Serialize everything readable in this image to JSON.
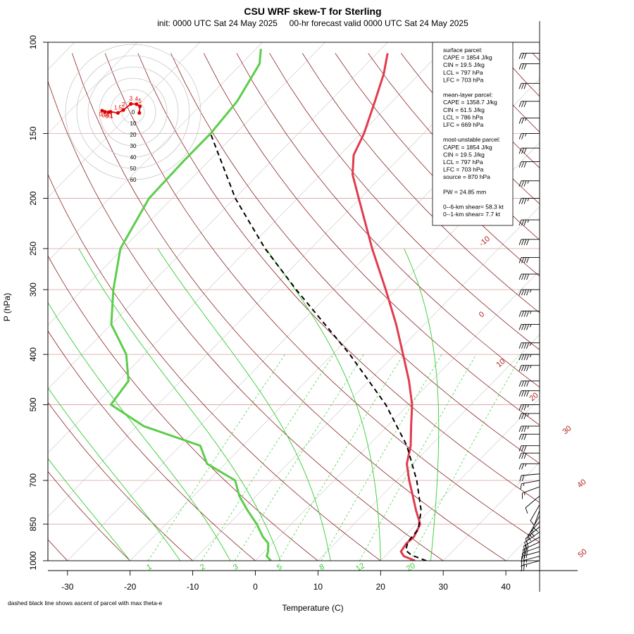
{
  "title": "CSU WRF skew-T for Sterling",
  "subtitle": "init: 0000 UTC Sat 24 May 2025     00-hr forecast valid 0000 UTC Sat 24 May 2025",
  "footnote": "dashed black line shows ascent of parcel with max theta-e",
  "colors": {
    "temperature": "#e03c4e",
    "dewpoint": "#5ccd4a",
    "parcel": "#000000",
    "isotherm": "#b22222",
    "dry_adiabat": "#8b2323",
    "moist_adiabat": "#32cd32",
    "mixing_ratio": "#32cd32",
    "isobar": "#d8a0a0",
    "hodograph": "#e00000",
    "grid_gray": "#c8c8c8"
  },
  "info_box": {
    "lines": [
      "surface parcel:",
      "CAPE = 1854 J/kg",
      "CIN = 19.5 J/kg",
      "LCL = 797 hPa",
      "LFC = 703 hPa",
      "",
      "mean-layer parcel:",
      "CAPE = 1358.7 J/kg",
      "CIN = 61.5 J/kg",
      "LCL = 786 hPa",
      "LFC = 669 hPa",
      "",
      "most-unstable parcel:",
      "CAPE = 1854 J/kg",
      "CIN = 19.5 J/kg",
      "LCL = 797 hPa",
      "LFC = 703 hPa",
      "source = 870 hPa",
      "",
      "PW =  24.85 mm",
      "",
      "0--6-km shear= 58.3 kt",
      "0--1-km shear= 7.7 kt"
    ]
  },
  "chart_data": {
    "type": "line",
    "subtype": "skew-t log-p",
    "xlabel": "Temperature (C)",
    "ylabel": "P (hPa)",
    "xlim": [
      -33,
      43
    ],
    "ylim": [
      1000,
      100
    ],
    "x_ticks": [
      -30,
      -20,
      -10,
      0,
      10,
      20,
      30,
      40
    ],
    "y_ticks": [
      100,
      150,
      200,
      250,
      300,
      400,
      500,
      700,
      850,
      1000
    ],
    "isotherm_labels": [
      {
        "label": "-10",
        "value": -10
      },
      {
        "label": "0",
        "value": 0
      },
      {
        "label": "10",
        "value": 10
      },
      {
        "label": "20",
        "value": 20
      },
      {
        "label": "30",
        "value": 30
      },
      {
        "label": "40",
        "value": 40
      },
      {
        "label": "50",
        "value": 50
      }
    ],
    "mixing_ratio_labels": [
      {
        "label": "1",
        "value": 1
      },
      {
        "label": "2",
        "value": 2
      },
      {
        "label": "3",
        "value": 3
      },
      {
        "label": "5",
        "value": 5
      },
      {
        "label": "8",
        "value": 8
      },
      {
        "label": "12",
        "value": 12
      },
      {
        "label": "20",
        "value": 20
      }
    ],
    "series": [
      {
        "name": "temperature",
        "points": [
          [
            1000,
            25.5
          ],
          [
            980,
            23.0
          ],
          [
            960,
            21.8
          ],
          [
            925,
            21.4
          ],
          [
            900,
            21.6
          ],
          [
            850,
            20.6
          ],
          [
            800,
            17.8
          ],
          [
            750,
            15.0
          ],
          [
            700,
            12.0
          ],
          [
            650,
            9.0
          ],
          [
            600,
            6.8
          ],
          [
            550,
            3.8
          ],
          [
            500,
            0.6
          ],
          [
            450,
            -3.6
          ],
          [
            400,
            -8.7
          ],
          [
            350,
            -14.5
          ],
          [
            300,
            -21.6
          ],
          [
            250,
            -30.2
          ],
          [
            200,
            -40.2
          ],
          [
            180,
            -44.9
          ],
          [
            165,
            -47.8
          ],
          [
            150,
            -49.5
          ],
          [
            130,
            -52.8
          ],
          [
            115,
            -55.7
          ],
          [
            105,
            -58.3
          ]
        ]
      },
      {
        "name": "dewpoint",
        "points": [
          [
            1000,
            2.5
          ],
          [
            980,
            1.1
          ],
          [
            960,
            0.6
          ],
          [
            925,
            -0.7
          ],
          [
            900,
            -2.5
          ],
          [
            850,
            -5.5
          ],
          [
            800,
            -9.1
          ],
          [
            750,
            -12.7
          ],
          [
            700,
            -15.8
          ],
          [
            650,
            -22.9
          ],
          [
            600,
            -26.8
          ],
          [
            550,
            -38.9
          ],
          [
            500,
            -47.5
          ],
          [
            450,
            -48.4
          ],
          [
            400,
            -52.9
          ],
          [
            350,
            -60.0
          ],
          [
            300,
            -65.1
          ],
          [
            250,
            -70.4
          ],
          [
            200,
            -73.7
          ],
          [
            170,
            -74.0
          ],
          [
            150,
            -74.0
          ],
          [
            130,
            -74.8
          ],
          [
            110,
            -77.1
          ],
          [
            103,
            -79.2
          ]
        ]
      },
      {
        "name": "parcel",
        "points": [
          [
            1000,
            27.3
          ],
          [
            975,
            24.0
          ],
          [
            955,
            22.4
          ],
          [
            920,
            21.4
          ],
          [
            870,
            21.1
          ],
          [
            800,
            18.6
          ],
          [
            700,
            13.2
          ],
          [
            600,
            6.2
          ],
          [
            500,
            -3.6
          ],
          [
            400,
            -17.2
          ],
          [
            300,
            -35.9
          ],
          [
            250,
            -47.3
          ],
          [
            200,
            -59.9
          ],
          [
            150,
            -74.0
          ]
        ]
      }
    ],
    "wind_barbs": [
      {
        "p": 1000,
        "speed": 25,
        "dir": 255
      },
      {
        "p": 980,
        "speed": 25,
        "dir": 255
      },
      {
        "p": 960,
        "speed": 25,
        "dir": 255
      },
      {
        "p": 940,
        "speed": 25,
        "dir": 250
      },
      {
        "p": 920,
        "speed": 25,
        "dir": 245
      },
      {
        "p": 900,
        "speed": 20,
        "dir": 240
      },
      {
        "p": 880,
        "speed": 20,
        "dir": 235
      },
      {
        "p": 860,
        "speed": 15,
        "dir": 230
      },
      {
        "p": 840,
        "speed": 15,
        "dir": 220
      },
      {
        "p": 820,
        "speed": 15,
        "dir": 210
      },
      {
        "p": 800,
        "speed": 10,
        "dir": 200
      },
      {
        "p": 780,
        "speed": 10,
        "dir": 210
      },
      {
        "p": 750,
        "speed": 10,
        "dir": 230
      },
      {
        "p": 720,
        "speed": 15,
        "dir": 250
      },
      {
        "p": 700,
        "speed": 15,
        "dir": 260
      },
      {
        "p": 680,
        "speed": 20,
        "dir": 265
      },
      {
        "p": 650,
        "speed": 25,
        "dir": 270
      },
      {
        "p": 620,
        "speed": 30,
        "dir": 270
      },
      {
        "p": 600,
        "speed": 30,
        "dir": 270
      },
      {
        "p": 570,
        "speed": 30,
        "dir": 270
      },
      {
        "p": 550,
        "speed": 35,
        "dir": 270
      },
      {
        "p": 520,
        "speed": 35,
        "dir": 270
      },
      {
        "p": 500,
        "speed": 35,
        "dir": 270
      },
      {
        "p": 470,
        "speed": 40,
        "dir": 270
      },
      {
        "p": 450,
        "speed": 40,
        "dir": 270
      },
      {
        "p": 420,
        "speed": 45,
        "dir": 270
      },
      {
        "p": 400,
        "speed": 45,
        "dir": 270
      },
      {
        "p": 380,
        "speed": 45,
        "dir": 270
      },
      {
        "p": 350,
        "speed": 45,
        "dir": 270
      },
      {
        "p": 330,
        "speed": 45,
        "dir": 270
      },
      {
        "p": 300,
        "speed": 45,
        "dir": 270
      },
      {
        "p": 280,
        "speed": 40,
        "dir": 270
      },
      {
        "p": 260,
        "speed": 40,
        "dir": 270
      },
      {
        "p": 240,
        "speed": 40,
        "dir": 270
      },
      {
        "p": 220,
        "speed": 35,
        "dir": 270
      },
      {
        "p": 200,
        "speed": 35,
        "dir": 270
      },
      {
        "p": 185,
        "speed": 35,
        "dir": 270
      },
      {
        "p": 170,
        "speed": 30,
        "dir": 270
      },
      {
        "p": 160,
        "speed": 30,
        "dir": 270
      },
      {
        "p": 150,
        "speed": 25,
        "dir": 270
      },
      {
        "p": 140,
        "speed": 25,
        "dir": 270
      },
      {
        "p": 130,
        "speed": 30,
        "dir": 270
      },
      {
        "p": 120,
        "speed": 30,
        "dir": 270
      },
      {
        "p": 110,
        "speed": 30,
        "dir": 270
      },
      {
        "p": 105,
        "speed": 30,
        "dir": 270
      }
    ],
    "hodograph": {
      "ring_labels": [
        "0",
        "10",
        "20",
        "30",
        "40",
        "50",
        "60"
      ],
      "ring_values": [
        0,
        10,
        20,
        30,
        40,
        50,
        60
      ],
      "points": [
        {
          "label": "0.6",
          "u": -27.5,
          "v": 1.2
        },
        {
          "label": "0.6",
          "u": -25.0,
          "v": 0.2
        },
        {
          "label": "0.1",
          "u": -21.8,
          "v": -0.2
        },
        {
          "label": "1",
          "u": -20.0,
          "v": 0.2
        },
        {
          "label": "1.5",
          "u": -13.5,
          "v": -0.8
        },
        {
          "label": "2",
          "u": -8.7,
          "v": 1.8
        },
        {
          "label": "3",
          "u": -2.0,
          "v": 7.2
        },
        {
          "label": "4",
          "u": 3.0,
          "v": 7.0
        },
        {
          "label": "5",
          "u": 6.0,
          "v": 5.0
        },
        {
          "label": "",
          "u": 5.5,
          "v": -0.8
        }
      ]
    }
  }
}
